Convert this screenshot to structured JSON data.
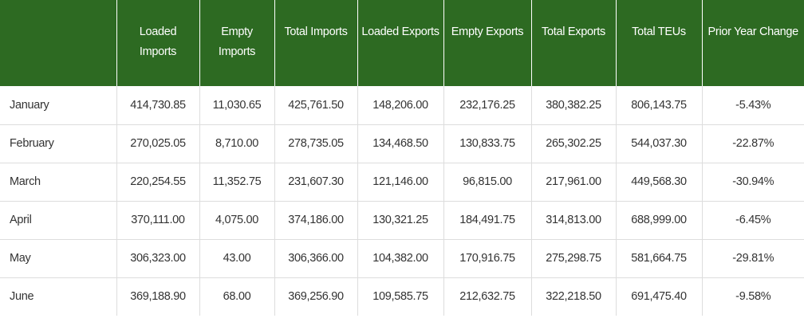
{
  "table": {
    "headers": [
      "",
      "Loaded Imports",
      "Empty Imports",
      "Total Imports",
      "Loaded Exports",
      "Empty Exports",
      "Total Exports",
      "Total TEUs",
      "Prior Year Change"
    ],
    "rows": [
      [
        "January",
        "414,730.85",
        "11,030.65",
        "425,761.50",
        "148,206.00",
        "232,176.25",
        "380,382.25",
        "806,143.75",
        "-5.43%"
      ],
      [
        "February",
        "270,025.05",
        "8,710.00",
        "278,735.05",
        "134,468.50",
        "130,833.75",
        "265,302.25",
        "544,037.30",
        "-22.87%"
      ],
      [
        "March",
        "220,254.55",
        "11,352.75",
        "231,607.30",
        "121,146.00",
        "96,815.00",
        "217,961.00",
        "449,568.30",
        "-30.94%"
      ],
      [
        "April",
        "370,111.00",
        "4,075.00",
        "374,186.00",
        "130,321.25",
        "184,491.75",
        "314,813.00",
        "688,999.00",
        "-6.45%"
      ],
      [
        "May",
        "306,323.00",
        "43.00",
        "306,366.00",
        "104,382.00",
        "170,916.75",
        "275,298.75",
        "581,664.75",
        "-29.81%"
      ],
      [
        "June",
        "369,188.90",
        "68.00",
        "369,256.90",
        "109,585.75",
        "212,632.75",
        "322,218.50",
        "691,475.40",
        "-9.58%"
      ]
    ]
  },
  "colors": {
    "header_bg": "#2d6a22",
    "header_text": "#ffffff",
    "row_border": "#dddddd"
  }
}
